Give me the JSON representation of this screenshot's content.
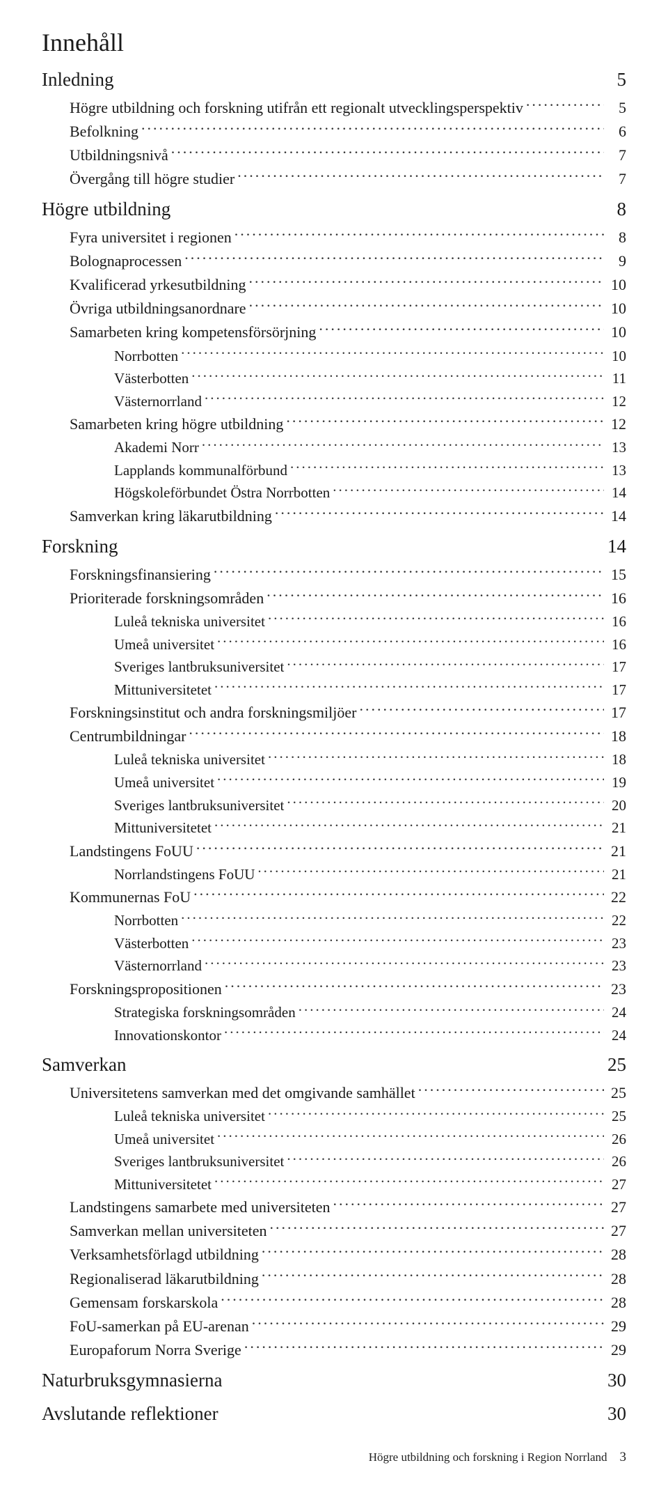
{
  "title": "Innehåll",
  "footer": {
    "text": "Högre utbildning och forskning i Region Norrland",
    "page": "3"
  },
  "entries": [
    {
      "level": 0,
      "label": "Inledning",
      "page": "5"
    },
    {
      "level": 1,
      "label": "Högre utbildning och forskning utifrån ett regionalt utvecklingsperspektiv",
      "page": "5"
    },
    {
      "level": 1,
      "label": "Befolkning",
      "page": "6"
    },
    {
      "level": 1,
      "label": "Utbildningsnivå",
      "page": "7"
    },
    {
      "level": 1,
      "label": "Övergång till högre studier",
      "page": "7"
    },
    {
      "level": 0,
      "label": "Högre utbildning",
      "page": "8"
    },
    {
      "level": 1,
      "label": "Fyra universitet i regionen",
      "page": "8"
    },
    {
      "level": 1,
      "label": "Bolognaprocessen",
      "page": "9"
    },
    {
      "level": 1,
      "label": "Kvalificerad yrkesutbildning",
      "page": "10"
    },
    {
      "level": 1,
      "label": "Övriga utbildningsanordnare",
      "page": "10"
    },
    {
      "level": 1,
      "label": "Samarbeten kring kompetensförsörjning",
      "page": "10"
    },
    {
      "level": 2,
      "label": "Norrbotten",
      "page": "10"
    },
    {
      "level": 2,
      "label": "Västerbotten",
      "page": "11"
    },
    {
      "level": 2,
      "label": "Västernorrland",
      "page": "12"
    },
    {
      "level": 1,
      "label": "Samarbeten kring högre utbildning",
      "page": "12"
    },
    {
      "level": 2,
      "label": "Akademi Norr",
      "page": "13"
    },
    {
      "level": 2,
      "label": "Lapplands kommunalförbund",
      "page": "13"
    },
    {
      "level": 2,
      "label": "Högskoleförbundet Östra Norrbotten",
      "page": "14"
    },
    {
      "level": 1,
      "label": "Samverkan kring läkarutbildning",
      "page": "14"
    },
    {
      "level": 0,
      "label": "Forskning",
      "page": "14"
    },
    {
      "level": 1,
      "label": "Forskningsfinansiering",
      "page": "15"
    },
    {
      "level": 1,
      "label": "Prioriterade forskningsområden",
      "page": "16"
    },
    {
      "level": 2,
      "label": "Luleå tekniska universitet",
      "page": "16"
    },
    {
      "level": 2,
      "label": "Umeå universitet",
      "page": "16"
    },
    {
      "level": 2,
      "label": "Sveriges lantbruksuniversitet",
      "page": "17"
    },
    {
      "level": 2,
      "label": "Mittuniversitetet",
      "page": "17"
    },
    {
      "level": 1,
      "label": "Forskningsinstitut och andra forskningsmiljöer",
      "page": "17"
    },
    {
      "level": 1,
      "label": "Centrumbildningar",
      "page": "18"
    },
    {
      "level": 2,
      "label": "Luleå tekniska universitet",
      "page": "18"
    },
    {
      "level": 2,
      "label": "Umeå universitet",
      "page": "19"
    },
    {
      "level": 2,
      "label": "Sveriges lantbruksuniversitet",
      "page": "20"
    },
    {
      "level": 2,
      "label": "Mittuniversitetet",
      "page": "21"
    },
    {
      "level": 1,
      "label": "Landstingens FoUU",
      "page": "21"
    },
    {
      "level": 2,
      "label": "Norrlandstingens FoUU",
      "page": "21"
    },
    {
      "level": 1,
      "label": "Kommunernas FoU",
      "page": "22"
    },
    {
      "level": 2,
      "label": "Norrbotten",
      "page": "22"
    },
    {
      "level": 2,
      "label": "Västerbotten",
      "page": "23"
    },
    {
      "level": 2,
      "label": "Västernorrland",
      "page": "23"
    },
    {
      "level": 1,
      "label": "Forskningspropositionen",
      "page": "23"
    },
    {
      "level": 2,
      "label": "Strategiska forskningsområden",
      "page": "24"
    },
    {
      "level": 2,
      "label": "Innovationskontor",
      "page": "24"
    },
    {
      "level": 0,
      "label": "Samverkan",
      "page": "25"
    },
    {
      "level": 1,
      "label": "Universitetens samverkan med det omgivande samhället",
      "page": "25"
    },
    {
      "level": 2,
      "label": "Luleå tekniska universitet",
      "page": "25"
    },
    {
      "level": 2,
      "label": "Umeå universitet",
      "page": "26"
    },
    {
      "level": 2,
      "label": "Sveriges lantbruksuniversitet",
      "page": "26"
    },
    {
      "level": 2,
      "label": "Mittuniversitetet",
      "page": "27"
    },
    {
      "level": 1,
      "label": "Landstingens samarbete med universiteten",
      "page": "27"
    },
    {
      "level": 1,
      "label": "Samverkan mellan universiteten",
      "page": "27"
    },
    {
      "level": 1,
      "label": "Verksamhetsförlagd utbildning",
      "page": "28"
    },
    {
      "level": 1,
      "label": "Regionaliserad läkarutbildning",
      "page": "28"
    },
    {
      "level": 1,
      "label": "Gemensam forskarskola",
      "page": "28"
    },
    {
      "level": 1,
      "label": "FoU-samerkan på EU-arenan",
      "page": "29"
    },
    {
      "level": 1,
      "label": "Europaforum Norra Sverige",
      "page": "29"
    },
    {
      "level": 0,
      "label": "Naturbruksgymnasierna",
      "page": "30"
    },
    {
      "level": 0,
      "label": "Avslutande reflektioner",
      "page": "30"
    }
  ]
}
